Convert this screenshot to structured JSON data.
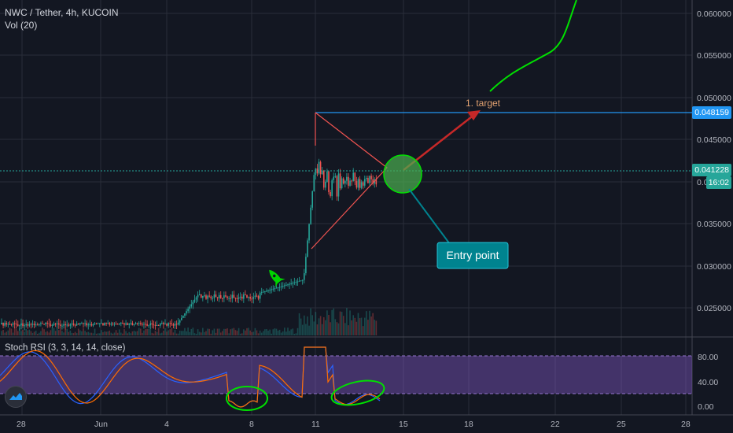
{
  "header": {
    "symbol_line": "NWC / Tether, 4h, KUCOIN",
    "volume_label": "Vol (20)"
  },
  "indicator": {
    "label": "Stoch RSI (3, 3, 14, 14, close)"
  },
  "price_axis": {
    "labels": [
      "0.060000",
      "0.055000",
      "0.050000",
      "0.045000",
      "0.040000",
      "0.035000",
      "0.030000",
      "0.025000"
    ],
    "target_badge": "0.048159",
    "last_price_badge": "0.041228",
    "countdown_badge": "16:02"
  },
  "rsi_axis": {
    "labels": [
      "80.00",
      "40.00",
      "0.00"
    ]
  },
  "time_axis": {
    "labels": [
      "28",
      "Jun",
      "4",
      "8",
      "11",
      "15",
      "18",
      "22",
      "25",
      "28"
    ]
  },
  "annotations": {
    "target_label": "1. target",
    "entry_label": "Entry point"
  },
  "colors": {
    "up": "#26a69a",
    "down": "#ef5350",
    "target_line": "#2196f3",
    "trend": "#ef5350",
    "green_marker": "#00e000",
    "rsi_band": "#7e57c2",
    "entry_box": "#00838f"
  },
  "icons": {
    "rocket": "rocket-icon",
    "logo": "tradingview-logo-icon"
  }
}
